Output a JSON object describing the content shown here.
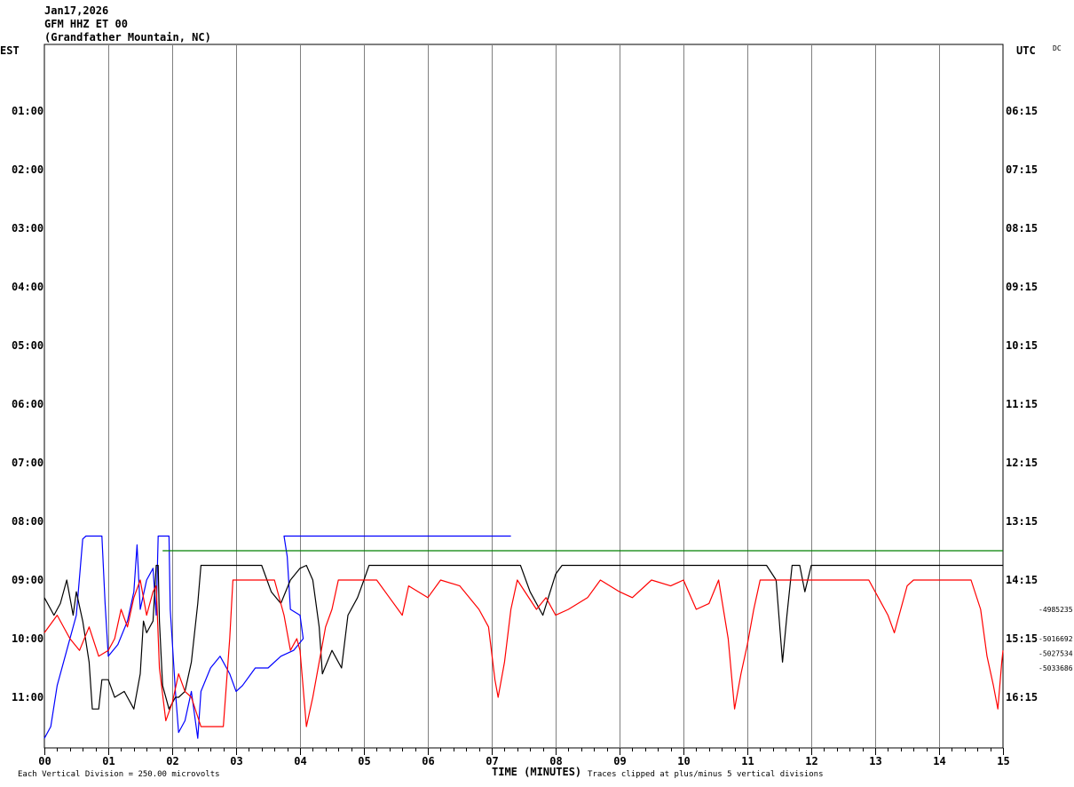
{
  "header": {
    "date": "Jan17,2026",
    "station": "GFM HHZ ET 00",
    "location": "(Grandfather Mountain, NC)",
    "left_zone": "EST",
    "right_zone": "UTC",
    "corner": "DC"
  },
  "footer": {
    "left_note": "Each Vertical Division =  250.00 microvolts",
    "x_title": "TIME (MINUTES)",
    "right_note": "Traces clipped at plus/minus 5 vertical divisions"
  },
  "colors": {
    "black": "#000000",
    "red": "#ff0000",
    "blue": "#0000ff",
    "green": "#008000",
    "grid": "#808080"
  },
  "chart_data": {
    "type": "line",
    "title": "GFM HHZ ET 00",
    "xlabel": "TIME (MINUTES)",
    "xlim": [
      0,
      15
    ],
    "x_ticks": [
      "00",
      "01",
      "02",
      "03",
      "04",
      "05",
      "06",
      "07",
      "08",
      "09",
      "10",
      "11",
      "12",
      "13",
      "14",
      "15"
    ],
    "left_labels": [
      "01:00",
      "02:00",
      "03:00",
      "04:00",
      "05:00",
      "06:00",
      "07:00",
      "08:00",
      "09:00",
      "10:00",
      "11:00"
    ],
    "right_labels": [
      "06:15",
      "07:15",
      "08:15",
      "09:15",
      "10:15",
      "11:15",
      "12:15",
      "13:15",
      "14:15",
      "15:15",
      "16:15"
    ],
    "right_values": [
      "-4985235",
      "-5016692",
      "-5027534",
      "-5033686"
    ],
    "grid": true,
    "series": [
      {
        "hour": "08:00",
        "color": "blue",
        "points": [
          [
            0,
            11.7
          ],
          [
            0.1,
            11.5
          ],
          [
            0.2,
            10.8
          ],
          [
            0.35,
            10.2
          ],
          [
            0.5,
            9.6
          ],
          [
            0.6,
            8.3
          ],
          [
            0.65,
            8.25
          ],
          [
            0.9,
            8.25
          ],
          [
            0.95,
            9.4
          ],
          [
            1.0,
            10.3
          ],
          [
            1.15,
            10.1
          ],
          [
            1.3,
            9.7
          ],
          [
            1.4,
            9.2
          ],
          [
            1.45,
            8.4
          ],
          [
            1.5,
            9.5
          ],
          [
            1.6,
            9.0
          ],
          [
            1.7,
            8.8
          ],
          [
            1.75,
            9.6
          ],
          [
            1.78,
            8.25
          ],
          [
            1.95,
            8.25
          ],
          [
            1.97,
            9.5
          ],
          [
            2.05,
            10.9
          ],
          [
            2.1,
            11.6
          ],
          [
            2.2,
            11.4
          ],
          [
            2.3,
            10.9
          ],
          [
            2.4,
            11.7
          ],
          [
            2.45,
            10.9
          ],
          [
            2.6,
            10.5
          ],
          [
            2.75,
            10.3
          ],
          [
            2.9,
            10.6
          ],
          [
            3.0,
            10.9
          ],
          [
            3.1,
            10.8
          ],
          [
            3.3,
            10.5
          ],
          [
            3.5,
            10.5
          ],
          [
            3.7,
            10.3
          ],
          [
            3.9,
            10.2
          ],
          [
            4.05,
            10.0
          ],
          [
            4.0,
            9.6
          ],
          [
            3.85,
            9.5
          ],
          [
            3.8,
            8.6
          ],
          [
            3.75,
            8.25
          ],
          [
            7.3,
            8.25
          ]
        ]
      },
      {
        "hour": "08:00",
        "color": "green",
        "points": [
          [
            1.85,
            8.5
          ],
          [
            15,
            8.5
          ]
        ]
      },
      {
        "hour": "09:00",
        "color": "black",
        "points": [
          [
            0,
            9.3
          ],
          [
            0.15,
            9.6
          ],
          [
            0.25,
            9.4
          ],
          [
            0.35,
            9.0
          ],
          [
            0.45,
            9.6
          ],
          [
            0.5,
            9.2
          ],
          [
            0.6,
            9.7
          ],
          [
            0.7,
            10.4
          ],
          [
            0.75,
            11.2
          ],
          [
            0.85,
            11.2
          ],
          [
            0.9,
            10.7
          ],
          [
            1.0,
            10.7
          ],
          [
            1.1,
            11.0
          ],
          [
            1.25,
            10.9
          ],
          [
            1.4,
            11.2
          ],
          [
            1.5,
            10.6
          ],
          [
            1.55,
            9.7
          ],
          [
            1.6,
            9.9
          ],
          [
            1.7,
            9.7
          ],
          [
            1.75,
            8.75
          ],
          [
            1.78,
            8.75
          ],
          [
            1.8,
            9.7
          ],
          [
            1.85,
            10.8
          ],
          [
            1.95,
            11.2
          ],
          [
            2.05,
            11.0
          ],
          [
            2.1,
            11.0
          ],
          [
            2.2,
            10.9
          ],
          [
            2.3,
            10.4
          ],
          [
            2.4,
            9.4
          ],
          [
            2.45,
            8.75
          ],
          [
            3.4,
            8.75
          ],
          [
            3.55,
            9.2
          ],
          [
            3.7,
            9.4
          ],
          [
            3.85,
            9.0
          ],
          [
            4.0,
            8.8
          ],
          [
            4.1,
            8.75
          ],
          [
            4.2,
            9.0
          ],
          [
            4.3,
            9.8
          ],
          [
            4.35,
            10.6
          ],
          [
            4.5,
            10.2
          ],
          [
            4.65,
            10.5
          ],
          [
            4.75,
            9.6
          ],
          [
            4.9,
            9.3
          ],
          [
            5.0,
            9.0
          ],
          [
            5.08,
            8.75
          ],
          [
            7.45,
            8.75
          ],
          [
            7.6,
            9.2
          ],
          [
            7.8,
            9.6
          ],
          [
            8.0,
            8.9
          ],
          [
            8.1,
            8.75
          ],
          [
            11.3,
            8.75
          ],
          [
            11.45,
            9.0
          ],
          [
            11.55,
            10.4
          ],
          [
            11.62,
            9.6
          ],
          [
            11.7,
            8.75
          ],
          [
            11.82,
            8.75
          ],
          [
            11.9,
            9.2
          ],
          [
            12.0,
            8.75
          ],
          [
            15,
            8.75
          ]
        ]
      },
      {
        "hour": "09:00",
        "color": "red",
        "points": [
          [
            0,
            9.9
          ],
          [
            0.2,
            9.6
          ],
          [
            0.4,
            10.0
          ],
          [
            0.55,
            10.2
          ],
          [
            0.7,
            9.8
          ],
          [
            0.85,
            10.3
          ],
          [
            1.0,
            10.2
          ],
          [
            1.1,
            10.0
          ],
          [
            1.2,
            9.5
          ],
          [
            1.3,
            9.8
          ],
          [
            1.4,
            9.3
          ],
          [
            1.5,
            9.0
          ],
          [
            1.6,
            9.6
          ],
          [
            1.7,
            9.2
          ],
          [
            1.75,
            9.1
          ],
          [
            1.8,
            10.5
          ],
          [
            1.9,
            11.4
          ],
          [
            2.0,
            11.1
          ],
          [
            2.1,
            10.6
          ],
          [
            2.2,
            10.9
          ],
          [
            2.3,
            11.0
          ],
          [
            2.45,
            11.5
          ],
          [
            2.8,
            11.5
          ],
          [
            2.9,
            10.0
          ],
          [
            2.95,
            9.0
          ],
          [
            3.6,
            9.0
          ],
          [
            3.75,
            9.6
          ],
          [
            3.85,
            10.2
          ],
          [
            3.95,
            10.0
          ],
          [
            4.0,
            10.2
          ],
          [
            4.1,
            11.5
          ],
          [
            4.2,
            11.0
          ],
          [
            4.3,
            10.4
          ],
          [
            4.4,
            9.8
          ],
          [
            4.5,
            9.5
          ],
          [
            4.6,
            9.0
          ],
          [
            5.2,
            9.0
          ],
          [
            5.4,
            9.3
          ],
          [
            5.6,
            9.6
          ],
          [
            5.7,
            9.1
          ],
          [
            6.0,
            9.3
          ],
          [
            6.2,
            9.0
          ],
          [
            6.5,
            9.1
          ],
          [
            6.8,
            9.5
          ],
          [
            6.95,
            9.8
          ],
          [
            7.05,
            10.7
          ],
          [
            7.1,
            11.0
          ],
          [
            7.2,
            10.4
          ],
          [
            7.3,
            9.5
          ],
          [
            7.4,
            9.0
          ],
          [
            7.7,
            9.5
          ],
          [
            7.85,
            9.3
          ],
          [
            8.0,
            9.6
          ],
          [
            8.2,
            9.5
          ],
          [
            8.5,
            9.3
          ],
          [
            8.7,
            9.0
          ],
          [
            9.0,
            9.2
          ],
          [
            9.2,
            9.3
          ],
          [
            9.5,
            9.0
          ],
          [
            9.8,
            9.1
          ],
          [
            10.0,
            9.0
          ],
          [
            10.2,
            9.5
          ],
          [
            10.4,
            9.4
          ],
          [
            10.55,
            9.0
          ],
          [
            10.7,
            10.0
          ],
          [
            10.8,
            11.2
          ],
          [
            10.9,
            10.6
          ],
          [
            11.0,
            10.1
          ],
          [
            11.1,
            9.5
          ],
          [
            11.2,
            9.0
          ],
          [
            12.9,
            9.0
          ],
          [
            13.05,
            9.3
          ],
          [
            13.2,
            9.6
          ],
          [
            13.3,
            9.9
          ],
          [
            13.4,
            9.5
          ],
          [
            13.5,
            9.1
          ],
          [
            13.6,
            9.0
          ],
          [
            14.5,
            9.0
          ],
          [
            14.65,
            9.5
          ],
          [
            14.75,
            10.3
          ],
          [
            14.85,
            10.8
          ],
          [
            14.92,
            11.2
          ],
          [
            14.98,
            10.4
          ],
          [
            15,
            10.2
          ]
        ]
      }
    ]
  }
}
